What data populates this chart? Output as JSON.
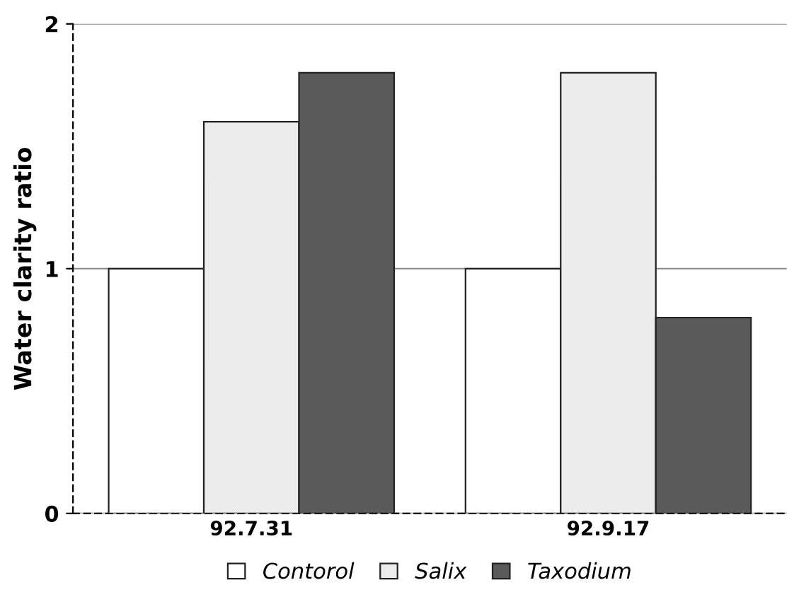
{
  "chart_data": {
    "type": "bar",
    "ylabel": "Water clarity ratio",
    "categories": [
      "92.7.31",
      "92.9.17"
    ],
    "series": [
      {
        "name": "Contorol",
        "color": "#ffffff",
        "values": [
          1.0,
          1.0
        ]
      },
      {
        "name": "Salix",
        "color": "#ececec",
        "values": [
          1.6,
          1.8
        ]
      },
      {
        "name": "Taxodium",
        "color": "#5a5a5a",
        "values": [
          1.8,
          0.8
        ]
      }
    ],
    "ylim": [
      0,
      2
    ],
    "yticks": [
      0,
      1,
      2
    ],
    "grid": "y",
    "legend": "bottom"
  }
}
